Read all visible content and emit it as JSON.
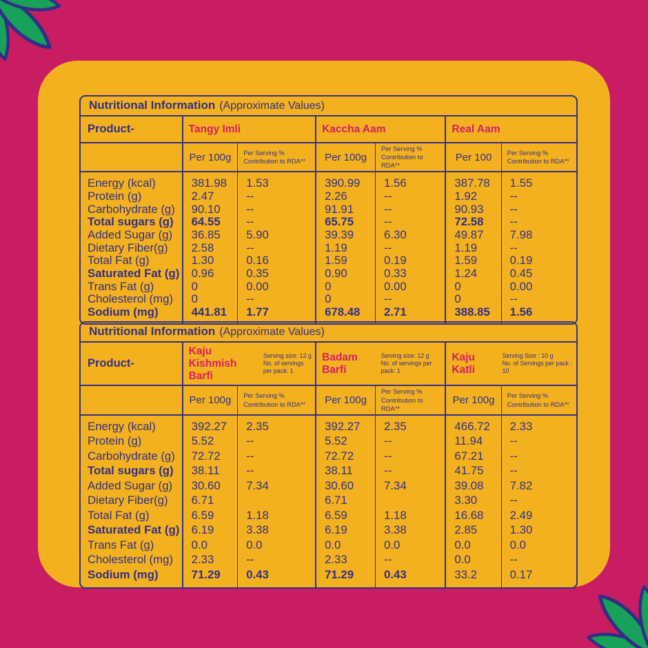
{
  "colors": {
    "background_pink": "#C81D62",
    "card_yellow": "#F4B11F",
    "ink_navy": "#312F85",
    "accent_pink": "#D41F63",
    "leaf_green": "#17A15B"
  },
  "decorations": {
    "top_left": "leaf-cluster",
    "bottom_right": "leaf-cluster"
  },
  "tables": [
    {
      "title": "Nutritional Information",
      "subtitle": "(Approximate Values)",
      "product_label": "Product-",
      "rda_header_line1": "Per Serving %",
      "rda_header_line2": "Contribution to RDA**",
      "products": [
        {
          "name": "Tangy Imli",
          "per_header": "Per 100g"
        },
        {
          "name": "Kaccha Aam",
          "per_header": "Per 100g"
        },
        {
          "name": "Real Aam",
          "per_header": "Per 100"
        }
      ],
      "rows": [
        {
          "label": "Energy (kcal)",
          "label_bold": 0,
          "values": [
            "381.98",
            "1.53",
            "390.99",
            "1.56",
            "387.78",
            "1.55"
          ],
          "bold": [
            0,
            0,
            0,
            0,
            0,
            0
          ]
        },
        {
          "label": "Protein (g)",
          "label_bold": 0,
          "values": [
            "2.47",
            "--",
            "2.26",
            "--",
            "1.92",
            "--"
          ],
          "bold": [
            0,
            0,
            0,
            0,
            0,
            0
          ]
        },
        {
          "label": "Carbohydrate (g)",
          "label_bold": 0,
          "values": [
            "90.10",
            "--",
            "91.91",
            "--",
            "90.93",
            "--"
          ],
          "bold": [
            0,
            0,
            0,
            0,
            0,
            0
          ]
        },
        {
          "label": "Total sugars (g)",
          "label_bold": 1,
          "values": [
            "64.55",
            "--",
            "65.75",
            "--",
            "72.58",
            "--"
          ],
          "bold": [
            1,
            0,
            1,
            0,
            1,
            0
          ]
        },
        {
          "label": "Added Sugar (g)",
          "label_bold": 0,
          "values": [
            "36.85",
            "5.90",
            "39.39",
            "6.30",
            "49.87",
            "7.98"
          ],
          "bold": [
            0,
            0,
            0,
            0,
            0,
            0
          ]
        },
        {
          "label": "Dietary Fiber(g)",
          "label_bold": 0,
          "values": [
            "2.58",
            "--",
            "1.19",
            "--",
            "1.19",
            "--"
          ],
          "bold": [
            0,
            0,
            0,
            0,
            0,
            0
          ]
        },
        {
          "label": "Total Fat (g)",
          "label_bold": 0,
          "values": [
            "1.30",
            "0.16",
            "1.59",
            "0.19",
            "1.59",
            "0.19"
          ],
          "bold": [
            0,
            0,
            0,
            0,
            0,
            0
          ]
        },
        {
          "label": "Saturated Fat (g)",
          "label_bold": 1,
          "values": [
            "0.96",
            "0.35",
            "0.90",
            "0.33",
            "1.24",
            "0.45"
          ],
          "bold": [
            0,
            0,
            0,
            0,
            0,
            0
          ]
        },
        {
          "label": "Trans Fat (g)",
          "label_bold": 0,
          "values": [
            "0",
            "0.00",
            "0",
            "0.00",
            "0",
            "0.00"
          ],
          "bold": [
            0,
            0,
            0,
            0,
            0,
            0
          ]
        },
        {
          "label": "Cholesterol (mg)",
          "label_bold": 0,
          "values": [
            "0",
            "--",
            "0",
            "--",
            "0",
            "--"
          ],
          "bold": [
            0,
            0,
            0,
            0,
            0,
            0
          ]
        },
        {
          "label": "Sodium (mg)",
          "label_bold": 1,
          "values": [
            "441.81",
            "1.77",
            "678.48",
            "2.71",
            "388.85",
            "1.56"
          ],
          "bold": [
            1,
            1,
            1,
            1,
            1,
            1
          ]
        }
      ]
    },
    {
      "title": "Nutritional Information",
      "subtitle": "(Approximate Values)",
      "product_label": "Product-",
      "rda_header_line1": "Per Serving %",
      "rda_header_line2": "Contribution to RDA**",
      "products": [
        {
          "name": "Kaju Kishmish Barfi",
          "per_header": "Per 100g",
          "serving_size": "Serving size: 12 g",
          "servings_per_pack": "No. of servings per pack: 1"
        },
        {
          "name": "Badam Barfi",
          "per_header": "Per 100g",
          "serving_size": "Serving size: 12 g",
          "servings_per_pack": "No. of servings per pack: 1"
        },
        {
          "name": "Kaju Katli",
          "per_header": "Per 100g",
          "serving_size": "Serving Size : 10 g",
          "servings_per_pack": "No. of Servings per pack : 10"
        }
      ],
      "rows": [
        {
          "label": "Energy (kcal)",
          "label_bold": 0,
          "values": [
            "392.27",
            "2.35",
            "392.27",
            "2.35",
            "466.72",
            "2.33"
          ],
          "bold": [
            0,
            0,
            0,
            0,
            0,
            0
          ]
        },
        {
          "label": "Protein (g)",
          "label_bold": 0,
          "values": [
            "5.52",
            "--",
            "5.52",
            "--",
            "11.94",
            "--"
          ],
          "bold": [
            0,
            0,
            0,
            0,
            0,
            0
          ]
        },
        {
          "label": "Carbohydrate (g)",
          "label_bold": 0,
          "values": [
            "72.72",
            "--",
            "72.72",
            "--",
            "67.21",
            "--"
          ],
          "bold": [
            0,
            0,
            0,
            0,
            0,
            0
          ]
        },
        {
          "label": "Total sugars (g)",
          "label_bold": 1,
          "values": [
            "38.11",
            "--",
            "38.11",
            "--",
            "41.75",
            "--"
          ],
          "bold": [
            0,
            0,
            0,
            0,
            0,
            0
          ]
        },
        {
          "label": "Added Sugar (g)",
          "label_bold": 0,
          "values": [
            "30.60",
            "7.34",
            "30.60",
            "7.34",
            "39.08",
            "7.82"
          ],
          "bold": [
            0,
            0,
            0,
            0,
            0,
            0
          ]
        },
        {
          "label": "Dietary Fiber(g)",
          "label_bold": 0,
          "values": [
            "6.71",
            "",
            "6.71",
            "",
            "3.30",
            "--"
          ],
          "bold": [
            0,
            0,
            0,
            0,
            0,
            0
          ]
        },
        {
          "label": "Total Fat (g)",
          "label_bold": 0,
          "values": [
            "6.59",
            "1.18",
            "6.59",
            "1.18",
            "16.68",
            "2.49"
          ],
          "bold": [
            0,
            0,
            0,
            0,
            0,
            0
          ]
        },
        {
          "label": "Saturated Fat (g)",
          "label_bold": 1,
          "values": [
            "6.19",
            "3.38",
            "6.19",
            "3.38",
            "2.85",
            "1.30"
          ],
          "bold": [
            0,
            0,
            0,
            0,
            0,
            0
          ]
        },
        {
          "label": "Trans Fat (g)",
          "label_bold": 0,
          "values": [
            "0.0",
            "0.0",
            "0.0",
            "0.0",
            "0.0",
            "0.0"
          ],
          "bold": [
            0,
            0,
            0,
            0,
            0,
            0
          ]
        },
        {
          "label": "Cholesterol (mg)",
          "label_bold": 0,
          "values": [
            "2.33",
            "--",
            "2.33",
            "--",
            "0.0",
            "--"
          ],
          "bold": [
            0,
            0,
            0,
            0,
            0,
            0
          ]
        },
        {
          "label": "Sodium (mg)",
          "label_bold": 1,
          "values": [
            "71.29",
            "0.43",
            "71.29",
            "0.43",
            "33.2",
            "0.17"
          ],
          "bold": [
            1,
            1,
            1,
            1,
            0,
            0
          ]
        }
      ]
    }
  ]
}
